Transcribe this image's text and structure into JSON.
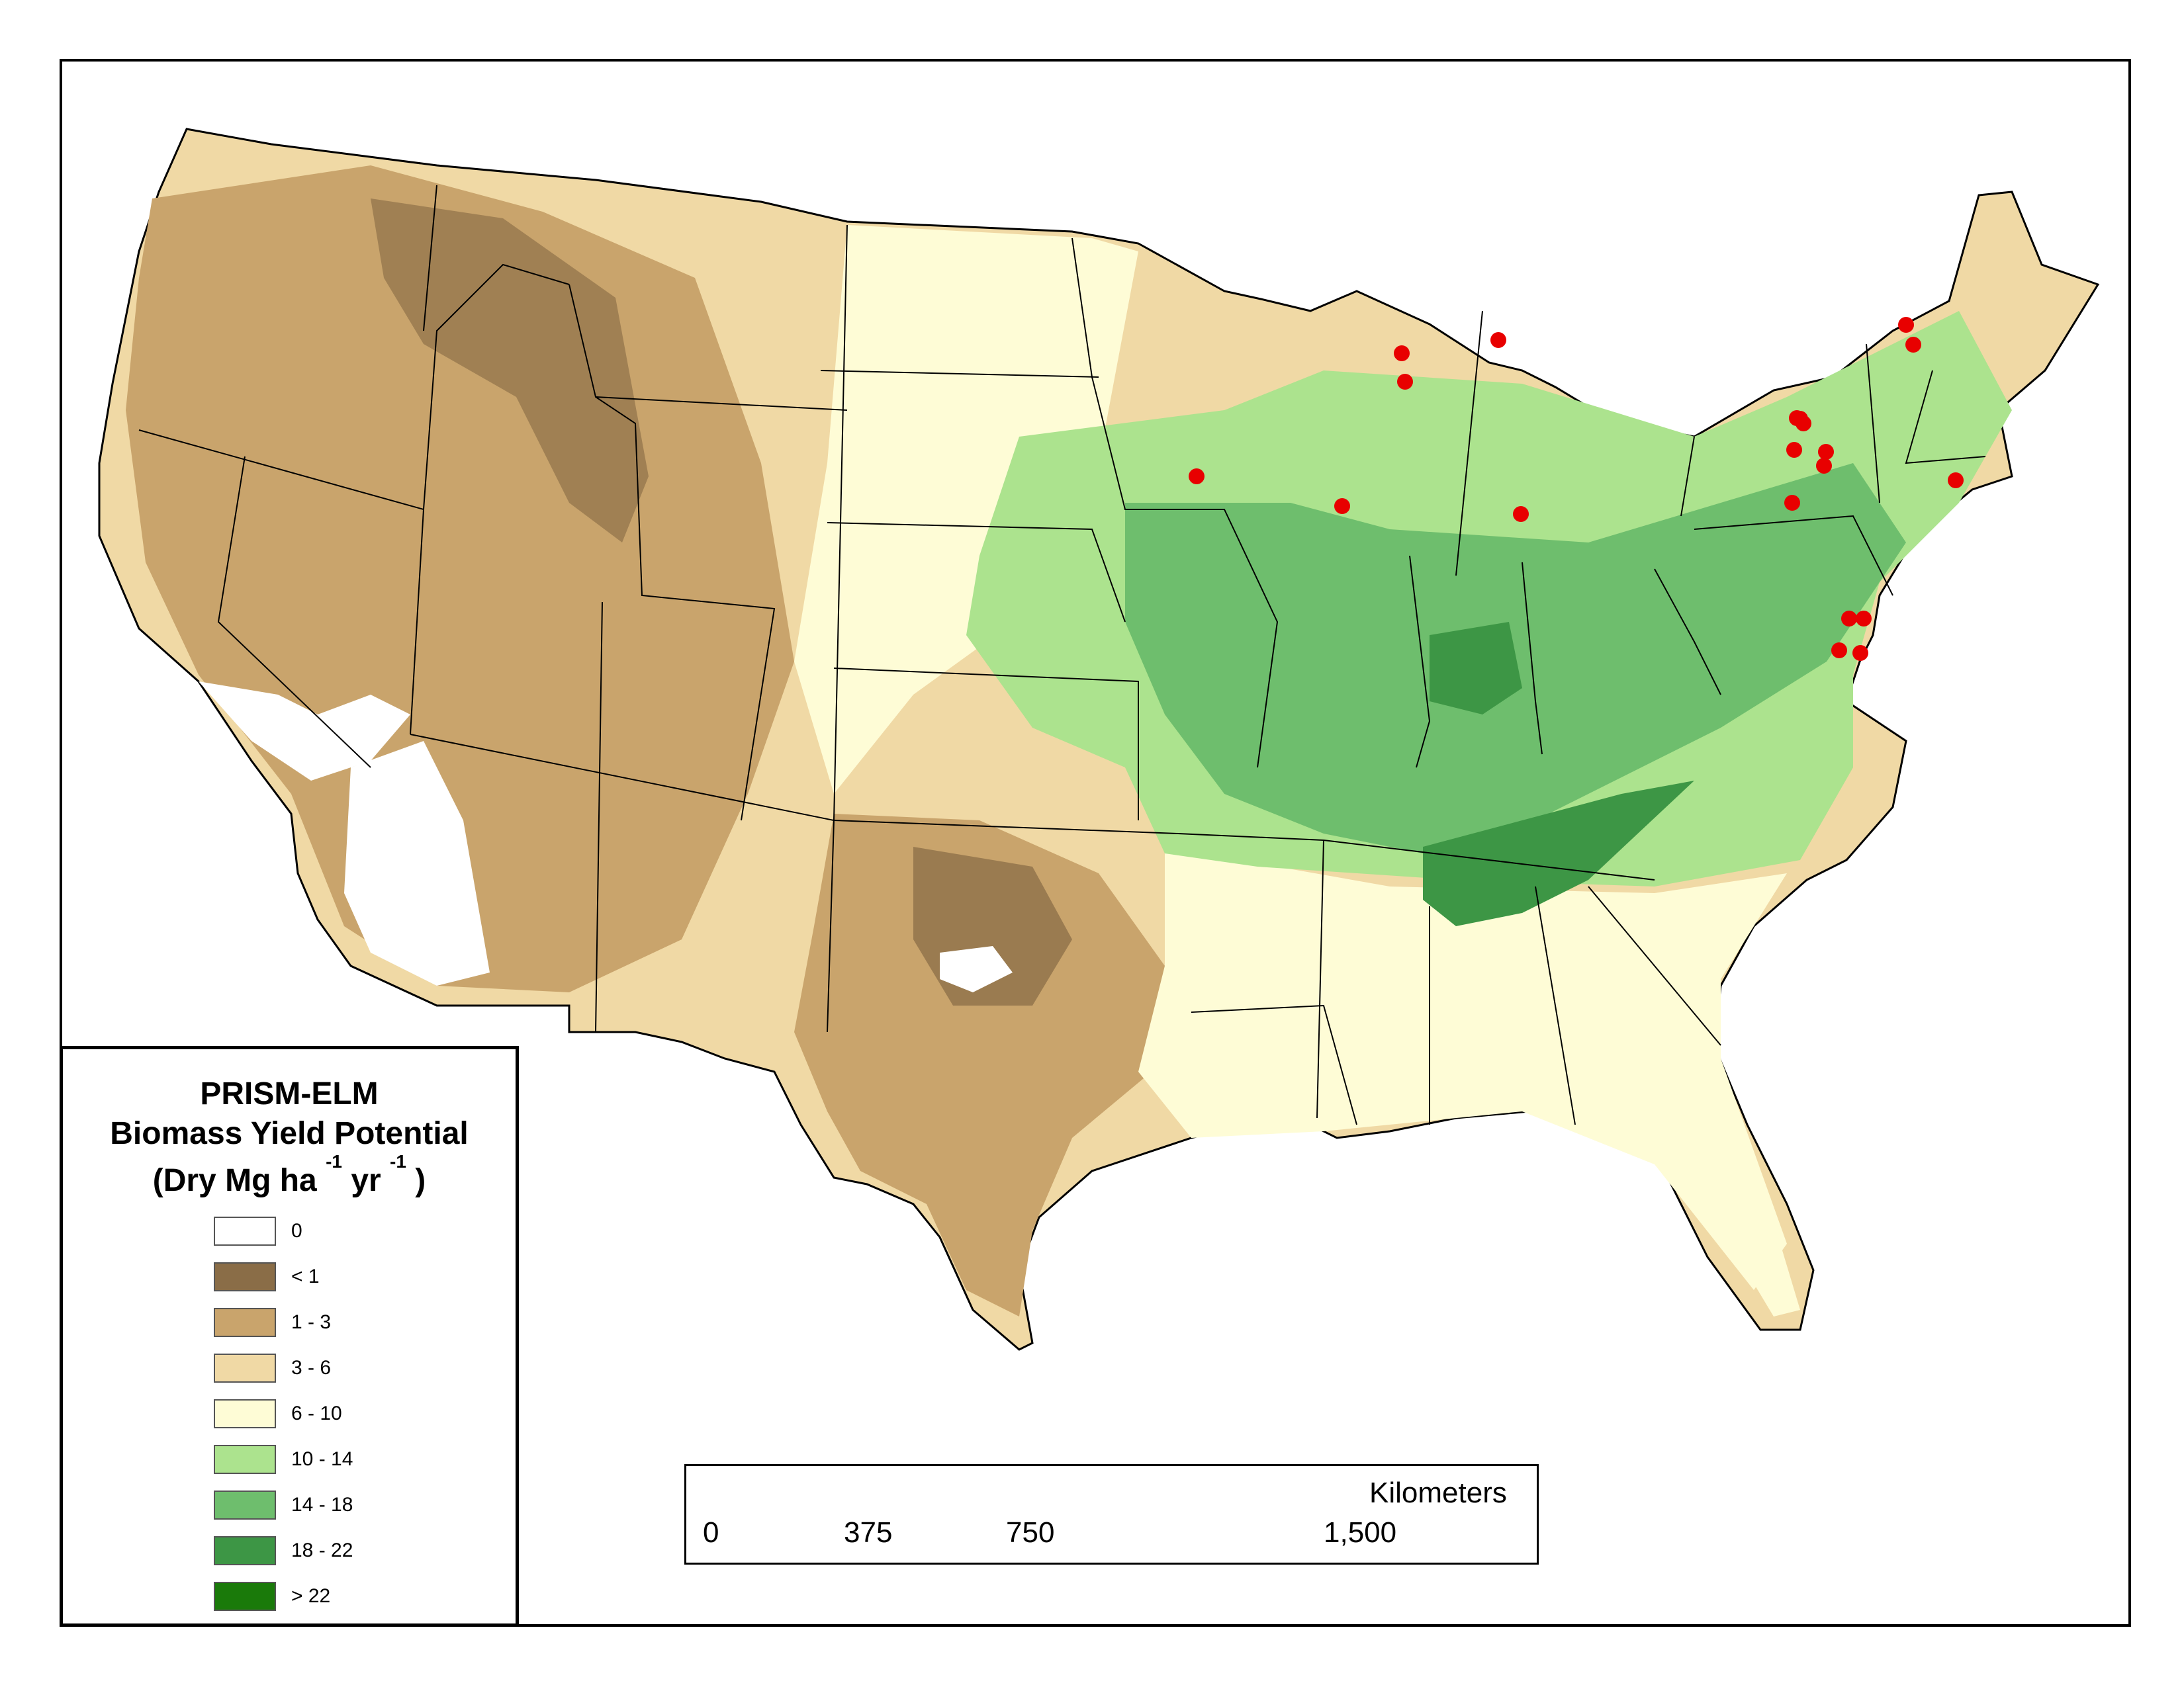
{
  "legend": {
    "title_line1": "PRISM-ELM",
    "title_line2": "Biomass Yield Potential",
    "title_line3_prefix": "(Dry Mg ha",
    "title_line3_sup1": "-1",
    "title_line3_mid": " yr",
    "title_line3_sup2": "-1",
    "title_line3_suffix": ")",
    "classes": [
      {
        "label": "0",
        "color": "#ffffff"
      },
      {
        "label": "< 1",
        "color": "#8a6d47"
      },
      {
        "label": "1 - 3",
        "color": "#c9a46c"
      },
      {
        "label": "3 - 6",
        "color": "#f0d9a5"
      },
      {
        "label": "6 - 10",
        "color": "#fefcd6"
      },
      {
        "label": "10 - 14",
        "color": "#ace38e"
      },
      {
        "label": "14 - 18",
        "color": "#6ebe6d"
      },
      {
        "label": "18 - 22",
        "color": "#3d9645"
      },
      {
        "label": "> 22",
        "color": "#1a7a0a"
      }
    ]
  },
  "scale_bar": {
    "unit": "Kilometers",
    "ticks": [
      "0",
      "375",
      "750",
      "1,500"
    ]
  },
  "sites": {
    "color": "#e80000",
    "count": 20
  }
}
